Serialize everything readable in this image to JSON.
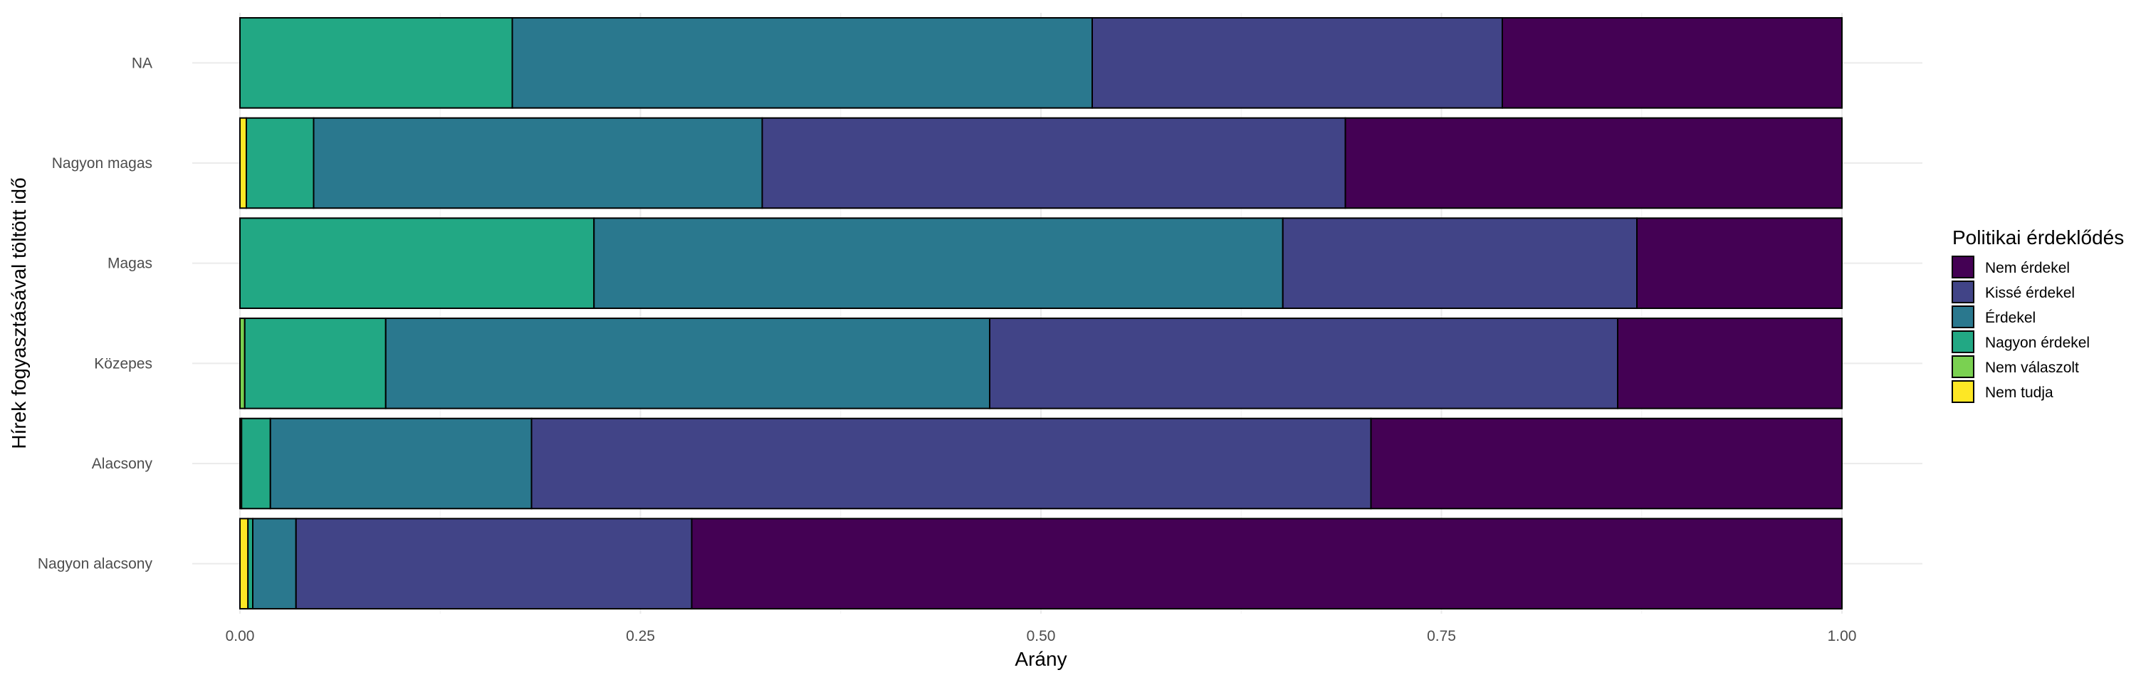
{
  "chart_data": {
    "type": "bar",
    "orientation": "horizontal",
    "stacked": "proportion",
    "title": "",
    "xlabel": "Arány",
    "ylabel": "Hírek fogyasztásával töltött idő",
    "xlim": [
      0,
      1
    ],
    "x_ticks": [
      0,
      0.25,
      0.5,
      0.75,
      1
    ],
    "x_tick_labels": [
      "0.00",
      "0.25",
      "0.50",
      "0.75",
      "1.00"
    ],
    "grid": true,
    "legend_position": "right",
    "legend_title": "Politikai érdeklődés",
    "categories": [
      "Nagyon alacsony",
      "Alacsony",
      "Közepes",
      "Magas",
      "Nagyon magas",
      "NA"
    ],
    "series": [
      {
        "name": "Nem tudja",
        "color": "#FDE725",
        "values": [
          0.005,
          0.0,
          0.0,
          0.0,
          0.004,
          0.0
        ]
      },
      {
        "name": "Nem válaszolt",
        "color": "#7AD151",
        "values": [
          0.0,
          0.001,
          0.003,
          0.0,
          0.0,
          0.0
        ]
      },
      {
        "name": "Nagyon érdekel",
        "color": "#22A884",
        "values": [
          0.003,
          0.018,
          0.088,
          0.221,
          0.042,
          0.17
        ]
      },
      {
        "name": "Érdekel",
        "color": "#2A788E",
        "values": [
          0.027,
          0.163,
          0.377,
          0.43,
          0.28,
          0.362
        ]
      },
      {
        "name": "Kissé érdekel",
        "color": "#414487",
        "values": [
          0.247,
          0.524,
          0.392,
          0.221,
          0.364,
          0.256
        ]
      },
      {
        "name": "Nem érdekel",
        "color": "#440154",
        "values": [
          0.718,
          0.294,
          0.14,
          0.128,
          0.31,
          0.212
        ]
      }
    ]
  }
}
